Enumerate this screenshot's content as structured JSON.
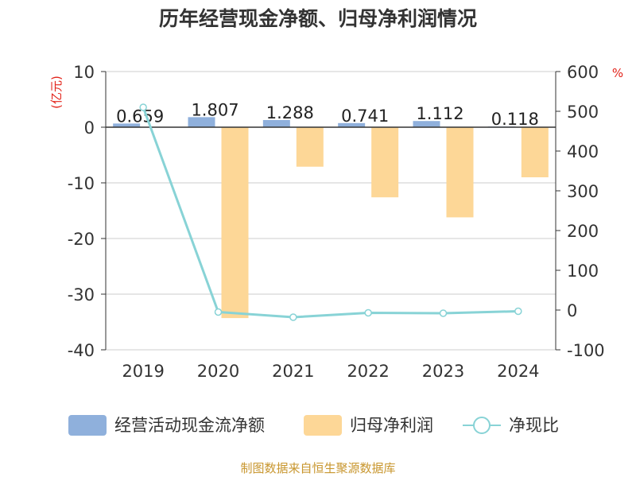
{
  "chart_data": {
    "type": "bar",
    "title": "历年经营现金净额、归母净利润情况",
    "y_left_unit": "(亿元)",
    "y_right_unit": "%",
    "categories": [
      "2019",
      "2020",
      "2021",
      "2022",
      "2023",
      "2024"
    ],
    "y_left_range": [
      -40,
      10
    ],
    "y_left_ticks": [
      "10",
      "0",
      "-10",
      "-20",
      "-30",
      "-40"
    ],
    "y_right_range": [
      -100,
      600
    ],
    "y_right_ticks": [
      "600",
      "500",
      "400",
      "300",
      "200",
      "100",
      "0",
      "-100"
    ],
    "grid": true,
    "legend_position": "bottom",
    "series": [
      {
        "name": "经营活动现金流净额",
        "type": "bar",
        "axis": "left",
        "color": "#8fb0dc",
        "values": [
          0.659,
          1.807,
          1.288,
          0.741,
          1.112,
          0.118
        ],
        "labels": [
          "0.659",
          "1.807",
          "1.288",
          "0.741",
          "1.112",
          "0.118"
        ]
      },
      {
        "name": "归母净利润",
        "type": "bar",
        "axis": "left",
        "color": "#fdd797",
        "values": [
          0,
          -34.3,
          -7.1,
          -12.6,
          -16.2,
          -9.0
        ]
      },
      {
        "name": "净现比",
        "type": "line",
        "axis": "right",
        "color": "#88d3d6",
        "values": [
          510,
          -5,
          -18,
          -7,
          -8,
          -3
        ]
      }
    ],
    "source": "制图数据来自恒生聚源数据库"
  }
}
